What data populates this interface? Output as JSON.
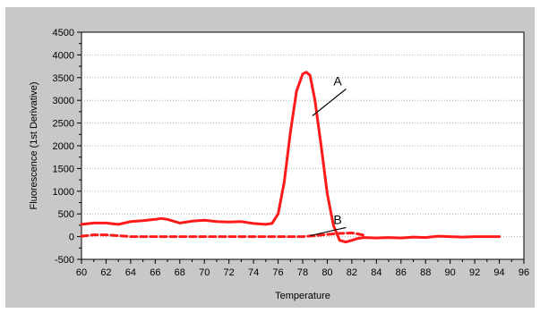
{
  "chart_data": {
    "type": "line",
    "xlabel": "Temperature",
    "ylabel": "Fluorescence (1st Derivative)",
    "xlim": [
      60,
      96
    ],
    "ylim": [
      -500,
      4500
    ],
    "x_ticks": [
      60,
      62,
      64,
      66,
      68,
      70,
      72,
      74,
      76,
      78,
      80,
      82,
      84,
      86,
      88,
      90,
      92,
      94,
      96
    ],
    "y_ticks": [
      -500,
      0,
      500,
      1000,
      1500,
      2000,
      2500,
      3000,
      3500,
      4000,
      4500
    ],
    "grid": "horizontal dotted",
    "colors": {
      "line": "#ff1a1a",
      "background": "#c8c8c8",
      "plot": "#ffffff"
    },
    "series": [
      {
        "style": "solid",
        "x": [
          60,
          61,
          62,
          63,
          64,
          65,
          66,
          66.5,
          67,
          68,
          69,
          70,
          71,
          72,
          73,
          74,
          75,
          75.5,
          76,
          76.5,
          77,
          77.5,
          78,
          78.3,
          78.6,
          79,
          79.5,
          80,
          80.5,
          81,
          81.5,
          82,
          82.5,
          83,
          84,
          85,
          86,
          87,
          88,
          89,
          90,
          91,
          92,
          93,
          94
        ],
        "y": [
          270,
          300,
          300,
          270,
          330,
          350,
          380,
          400,
          380,
          300,
          340,
          360,
          330,
          320,
          330,
          290,
          270,
          290,
          500,
          1200,
          2300,
          3200,
          3580,
          3620,
          3550,
          3000,
          2000,
          950,
          250,
          -80,
          -120,
          -80,
          -40,
          -20,
          -30,
          -20,
          -30,
          -10,
          -20,
          10,
          0,
          -10,
          0,
          0,
          0
        ]
      },
      {
        "style": "dashed",
        "x": [
          60,
          61,
          62,
          63,
          64,
          66,
          68,
          70,
          72,
          74,
          76,
          78,
          79,
          80,
          81,
          82,
          82.5,
          83
        ],
        "y": [
          10,
          40,
          40,
          20,
          0,
          0,
          0,
          0,
          0,
          0,
          0,
          0,
          20,
          50,
          70,
          80,
          60,
          30
        ]
      }
    ],
    "annotations": [
      {
        "text": "A",
        "x": 80.8,
        "y": 3250,
        "pointer_to": [
          78.8,
          2660
        ]
      },
      {
        "text": "B",
        "x": 80.8,
        "y": 200,
        "pointer_to": [
          78.6,
          20
        ]
      }
    ]
  }
}
